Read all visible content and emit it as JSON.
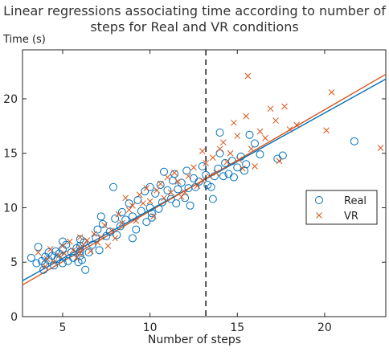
{
  "chart_data": {
    "type": "scatter",
    "title_lines": [
      "Linear regressions associating time according to number of",
      "steps for Real and VR conditions"
    ],
    "xlabel": "Number of steps",
    "ylabel": "Time (s)",
    "xlim": [
      2.7,
      23.5
    ],
    "ylim": [
      0,
      24.5
    ],
    "xticks": [
      5,
      10,
      15,
      20
    ],
    "yticks": [
      0,
      5,
      10,
      15,
      20
    ],
    "grid": false,
    "legend_position": "right",
    "vertical_line_x": 13.2,
    "series": [
      {
        "name": "Real",
        "marker": "circle",
        "color": "#0072BD",
        "points": [
          [
            3.2,
            5.4
          ],
          [
            3.5,
            4.9
          ],
          [
            3.6,
            6.4
          ],
          [
            3.8,
            5.1
          ],
          [
            3.9,
            4.3
          ],
          [
            4.0,
            5.5
          ],
          [
            4.0,
            4.8
          ],
          [
            4.2,
            5.9
          ],
          [
            4.2,
            5.2
          ],
          [
            4.4,
            5.6
          ],
          [
            4.5,
            4.7
          ],
          [
            4.6,
            6.0
          ],
          [
            4.7,
            5.3
          ],
          [
            4.8,
            5.8
          ],
          [
            5.0,
            6.9
          ],
          [
            5.0,
            6.2
          ],
          [
            5.0,
            5.5
          ],
          [
            5.0,
            4.9
          ],
          [
            5.2,
            6.6
          ],
          [
            5.3,
            5.1
          ],
          [
            5.5,
            5.9
          ],
          [
            5.6,
            5.4
          ],
          [
            5.8,
            6.3
          ],
          [
            5.9,
            5.0
          ],
          [
            6.0,
            7.1
          ],
          [
            6.0,
            6.5
          ],
          [
            6.0,
            6.0
          ],
          [
            6.0,
            5.6
          ],
          [
            6.1,
            5.2
          ],
          [
            6.2,
            6.8
          ],
          [
            6.3,
            4.3
          ],
          [
            6.5,
            5.9
          ],
          [
            6.7,
            6.6
          ],
          [
            6.9,
            7.2
          ],
          [
            7.0,
            8.0
          ],
          [
            7.1,
            6.1
          ],
          [
            7.2,
            9.2
          ],
          [
            7.3,
            8.5
          ],
          [
            7.5,
            7.4
          ],
          [
            7.7,
            7.8
          ],
          [
            7.9,
            11.9
          ],
          [
            8.0,
            9.0
          ],
          [
            8.1,
            7.5
          ],
          [
            8.3,
            8.3
          ],
          [
            8.4,
            9.6
          ],
          [
            8.6,
            8.9
          ],
          [
            8.8,
            10.4
          ],
          [
            9.0,
            9.2
          ],
          [
            9.0,
            7.2
          ],
          [
            9.2,
            8.0
          ],
          [
            9.3,
            10.7
          ],
          [
            9.5,
            9.7
          ],
          [
            9.7,
            11.5
          ],
          [
            9.8,
            8.7
          ],
          [
            10.0,
            11.9
          ],
          [
            10.0,
            10.0
          ],
          [
            10.1,
            9.1
          ],
          [
            10.1,
            9.5
          ],
          [
            10.3,
            11.3
          ],
          [
            10.5,
            9.9
          ],
          [
            10.6,
            12.1
          ],
          [
            10.7,
            10.5
          ],
          [
            10.8,
            13.3
          ],
          [
            11.0,
            11.6
          ],
          [
            11.2,
            10.8
          ],
          [
            11.3,
            12.5
          ],
          [
            11.4,
            13.1
          ],
          [
            11.5,
            10.4
          ],
          [
            11.6,
            11.7
          ],
          [
            11.8,
            12.3
          ],
          [
            12.0,
            10.9
          ],
          [
            12.1,
            13.4
          ],
          [
            12.2,
            11.8
          ],
          [
            12.3,
            10.2
          ],
          [
            12.5,
            12.7
          ],
          [
            12.6,
            11.9
          ],
          [
            12.8,
            12.4
          ],
          [
            13.0,
            13.8
          ],
          [
            13.2,
            13.0
          ],
          [
            13.3,
            12.1
          ],
          [
            13.5,
            11.9
          ],
          [
            13.6,
            10.8
          ],
          [
            13.7,
            12.9
          ],
          [
            13.9,
            13.6
          ],
          [
            14.0,
            15.0
          ],
          [
            14.0,
            16.9
          ],
          [
            14.2,
            12.9
          ],
          [
            14.3,
            14.1
          ],
          [
            14.5,
            13.1
          ],
          [
            14.7,
            14.3
          ],
          [
            14.8,
            12.8
          ],
          [
            15.0,
            13.7
          ],
          [
            15.2,
            14.7
          ],
          [
            15.4,
            13.4
          ],
          [
            15.5,
            14.0
          ],
          [
            15.7,
            16.7
          ],
          [
            16.0,
            15.9
          ],
          [
            16.3,
            14.9
          ],
          [
            17.3,
            14.5
          ],
          [
            17.6,
            14.8
          ],
          [
            21.7,
            16.1
          ]
        ]
      },
      {
        "name": "VR",
        "marker": "x",
        "color": "#D95319",
        "points": [
          [
            3.6,
            5.9
          ],
          [
            4.0,
            4.6
          ],
          [
            4.1,
            5.3
          ],
          [
            4.3,
            6.2
          ],
          [
            4.5,
            5.0
          ],
          [
            4.8,
            5.6
          ],
          [
            5.0,
            6.5
          ],
          [
            5.1,
            5.8
          ],
          [
            5.4,
            6.9
          ],
          [
            5.6,
            6.1
          ],
          [
            5.8,
            5.4
          ],
          [
            6.0,
            6.3
          ],
          [
            6.0,
            7.3
          ],
          [
            6.0,
            5.8
          ],
          [
            6.2,
            6.6
          ],
          [
            6.4,
            7.0
          ],
          [
            6.6,
            6.0
          ],
          [
            6.8,
            7.6
          ],
          [
            7.0,
            6.8
          ],
          [
            7.2,
            7.3
          ],
          [
            7.4,
            8.4
          ],
          [
            7.6,
            6.5
          ],
          [
            7.8,
            7.9
          ],
          [
            8.0,
            7.2
          ],
          [
            8.2,
            9.4
          ],
          [
            8.4,
            8.6
          ],
          [
            8.6,
            10.9
          ],
          [
            8.8,
            9.8
          ],
          [
            9.0,
            10.2
          ],
          [
            9.2,
            8.8
          ],
          [
            9.4,
            11.2
          ],
          [
            9.6,
            10.4
          ],
          [
            9.8,
            11.8
          ],
          [
            10.0,
            10.6
          ],
          [
            10.2,
            9.2
          ],
          [
            10.4,
            11.6
          ],
          [
            10.6,
            12.2
          ],
          [
            10.8,
            10.9
          ],
          [
            11.0,
            12.8
          ],
          [
            11.2,
            11.4
          ],
          [
            11.4,
            13.2
          ],
          [
            11.6,
            12.4
          ],
          [
            11.8,
            11.0
          ],
          [
            12.0,
            11.4
          ],
          [
            12.2,
            12.9
          ],
          [
            12.5,
            13.7
          ],
          [
            12.7,
            12.0
          ],
          [
            13.0,
            15.2
          ],
          [
            13.0,
            12.5
          ],
          [
            13.2,
            14.1
          ],
          [
            13.4,
            12.9
          ],
          [
            13.6,
            14.6
          ],
          [
            13.8,
            13.2
          ],
          [
            14.0,
            15.4
          ],
          [
            14.2,
            16.0
          ],
          [
            14.4,
            14.2
          ],
          [
            14.6,
            15.0
          ],
          [
            14.8,
            17.8
          ],
          [
            15.0,
            16.6
          ],
          [
            15.1,
            14.4
          ],
          [
            15.3,
            13.6
          ],
          [
            15.5,
            18.4
          ],
          [
            15.6,
            22.1
          ],
          [
            15.8,
            15.4
          ],
          [
            16.0,
            13.8
          ],
          [
            16.3,
            17.0
          ],
          [
            16.6,
            16.4
          ],
          [
            16.9,
            19.1
          ],
          [
            17.2,
            18.0
          ],
          [
            17.4,
            14.3
          ],
          [
            17.7,
            19.3
          ],
          [
            18.0,
            17.2
          ],
          [
            18.4,
            17.6
          ],
          [
            20.1,
            17.1
          ],
          [
            20.4,
            20.6
          ],
          [
            23.2,
            15.5
          ]
        ]
      }
    ],
    "fit_lines": [
      {
        "series": "Real",
        "color": "#0072BD",
        "intercept": 0.9,
        "slope": 0.89
      },
      {
        "series": "VR",
        "color": "#D95319",
        "intercept": 0.4,
        "slope": 0.93
      }
    ]
  }
}
